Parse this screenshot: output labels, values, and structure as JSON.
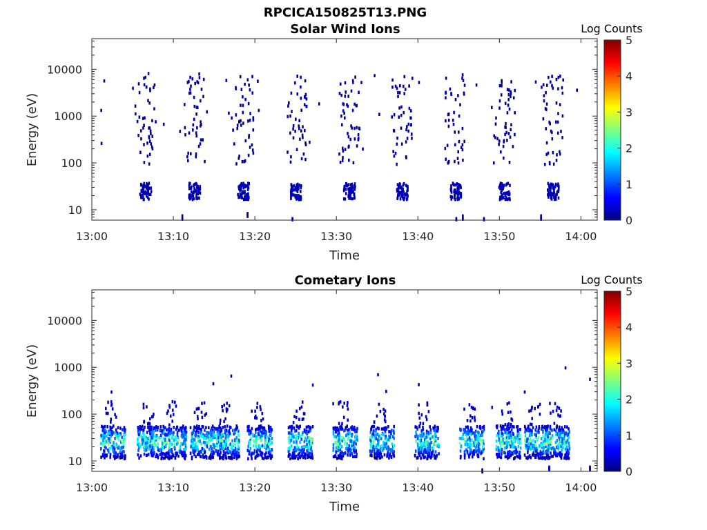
{
  "figure_title": "RPCICA150825T13.PNG",
  "colorbar": {
    "title": "Log Counts",
    "ticks": [
      "0",
      "1",
      "2",
      "3",
      "4",
      "5"
    ],
    "range": [
      0,
      5
    ]
  },
  "chart_data": [
    {
      "type": "heatmap",
      "title": "Solar Wind Ions",
      "xlabel": "Time",
      "ylabel": "Energy (eV)",
      "xticks": [
        "13:00",
        "13:10",
        "13:20",
        "13:30",
        "13:40",
        "13:50",
        "14:00"
      ],
      "yticks": [
        "10",
        "100",
        "1000",
        "10000"
      ],
      "xlim_minutes": [
        0,
        62
      ],
      "ylim": [
        6,
        45000
      ],
      "yscale": "log",
      "colorbar_label": "Log Counts",
      "bursts_minutes": [
        6.5,
        12.5,
        18.5,
        25.0,
        31.5,
        38.0,
        44.5,
        50.5,
        56.5
      ],
      "note_values": "sparse single counts (log ~0.2) from 100 eV to 10 keV; dense low-count cluster near 20-40 eV"
    },
    {
      "type": "heatmap",
      "title": "Cometary Ions",
      "xlabel": "Time",
      "ylabel": "Energy (eV)",
      "xticks": [
        "13:00",
        "13:10",
        "13:20",
        "13:30",
        "13:40",
        "13:50",
        "14:00"
      ],
      "yticks": [
        "10",
        "100",
        "1000",
        "10000"
      ],
      "xlim_minutes": [
        0,
        62
      ],
      "ylim": [
        6,
        45000
      ],
      "yscale": "log",
      "colorbar_label": "Log Counts",
      "bursts_minutes": [
        2.5,
        7,
        10,
        13.5,
        16.5,
        20.5,
        25.5,
        31,
        35.5,
        41,
        46.5,
        51,
        54.5,
        57
      ],
      "note_values": "dense population 12-60 eV, peak log counts ~2.5"
    }
  ]
}
